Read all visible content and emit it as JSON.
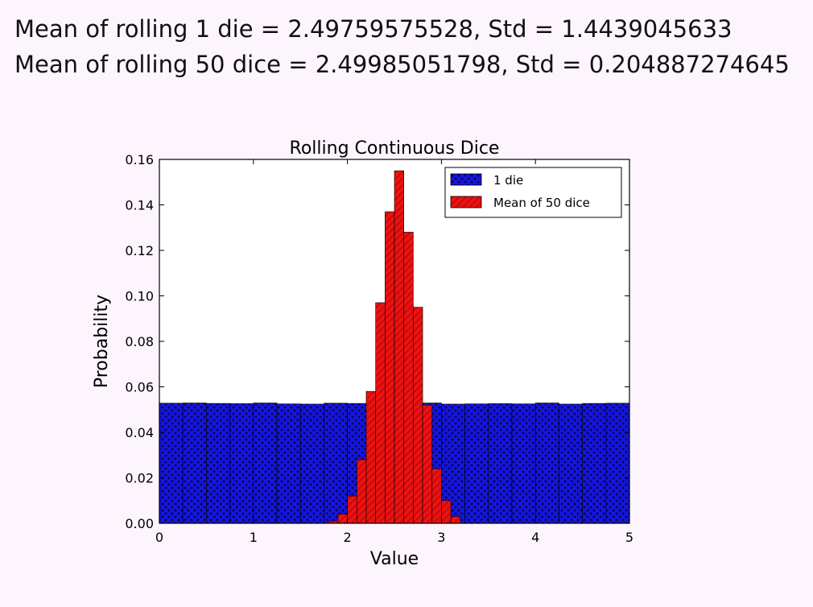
{
  "summary": {
    "line1": "Mean of rolling 1 die = 2.49759575528, Std = 1.4439045633",
    "line2": "Mean of rolling 50 dice = 2.49985051798, Std = 0.204887274645"
  },
  "colors": {
    "background": "#fdf5fd",
    "die1_fill": "#1515e6",
    "die1_hatch": "#0a0a55",
    "mean50_fill": "#ee1111",
    "mean50_hatch": "#700808"
  },
  "chart_data": {
    "type": "bar",
    "title": "Rolling Continuous Dice",
    "xlabel": "Value",
    "ylabel": "Probability",
    "xlim": [
      0,
      5
    ],
    "ylim": [
      0,
      0.16
    ],
    "xticks": [
      "0",
      "1",
      "2",
      "3",
      "4",
      "5"
    ],
    "yticks": [
      "0.00",
      "0.02",
      "0.04",
      "0.06",
      "0.08",
      "0.10",
      "0.12",
      "0.14",
      "0.16"
    ],
    "legend": {
      "position": "top-right",
      "entries": [
        "1 die",
        "Mean of 50 dice"
      ]
    },
    "grid": false,
    "series": [
      {
        "name": "1 die",
        "bin_width": 0.25,
        "x": [
          0,
          0.25,
          0.5,
          0.75,
          1.0,
          1.25,
          1.5,
          1.75,
          2.0,
          2.25,
          2.5,
          2.75,
          3.0,
          3.25,
          3.5,
          3.75,
          4.0,
          4.25,
          4.5,
          4.75
        ],
        "values": [
          0.0528,
          0.0529,
          0.0527,
          0.0526,
          0.0529,
          0.0525,
          0.0524,
          0.0528,
          0.0527,
          0.0526,
          0.0528,
          0.0529,
          0.0524,
          0.0525,
          0.0526,
          0.0525,
          0.0529,
          0.0524,
          0.0527,
          0.0528
        ]
      },
      {
        "name": "Mean of 50 dice",
        "bin_width": 0.1,
        "x": [
          1.8,
          1.9,
          2.0,
          2.1,
          2.2,
          2.3,
          2.4,
          2.5,
          2.6,
          2.7,
          2.8,
          2.9,
          3.0,
          3.1
        ],
        "values": [
          0.001,
          0.004,
          0.012,
          0.028,
          0.058,
          0.097,
          0.137,
          0.155,
          0.128,
          0.095,
          0.052,
          0.024,
          0.01,
          0.003
        ]
      }
    ]
  }
}
